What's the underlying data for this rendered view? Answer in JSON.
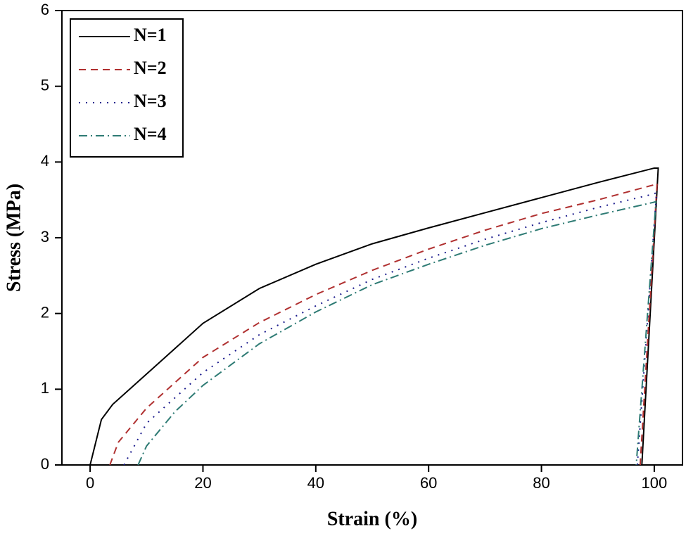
{
  "chart_data": {
    "type": "line",
    "xlabel": "Strain (%)",
    "ylabel": "Stress (MPa)",
    "xlim": [
      -5,
      105
    ],
    "xticks": [
      0,
      20,
      40,
      60,
      80,
      100
    ],
    "ylim": [
      0,
      6
    ],
    "yticks": [
      0,
      1,
      2,
      3,
      4,
      5,
      6
    ],
    "legend": "upper-left",
    "series": [
      {
        "name": "N=1",
        "color": "#000000",
        "dash": "solid",
        "x": [
          0,
          2,
          4,
          10,
          20,
          30,
          40,
          50,
          60,
          70,
          80,
          90,
          100,
          100.7,
          97.8
        ],
        "values": [
          0,
          0.6,
          0.8,
          1.2,
          1.87,
          2.33,
          2.65,
          2.92,
          3.13,
          3.33,
          3.53,
          3.73,
          3.92,
          3.92,
          0
        ]
      },
      {
        "name": "N=2",
        "color": "#b03030",
        "dash": "dash",
        "x": [
          3.5,
          5,
          10,
          20,
          30,
          40,
          50,
          60,
          70,
          80,
          90,
          100,
          100.5,
          97.5
        ],
        "values": [
          0,
          0.3,
          0.75,
          1.42,
          1.88,
          2.25,
          2.57,
          2.85,
          3.1,
          3.32,
          3.5,
          3.7,
          3.72,
          0
        ]
      },
      {
        "name": "N=3",
        "color": "#1a1a8c",
        "dash": "dot",
        "x": [
          6,
          10,
          20,
          30,
          40,
          50,
          60,
          70,
          80,
          90,
          100,
          100.4,
          97
        ],
        "values": [
          0,
          0.55,
          1.22,
          1.72,
          2.1,
          2.45,
          2.73,
          2.98,
          3.2,
          3.4,
          3.58,
          3.6,
          0
        ]
      },
      {
        "name": "N=4",
        "color": "#2e7b74",
        "dash": "dashdot",
        "x": [
          8.5,
          10,
          15,
          20,
          30,
          40,
          50,
          60,
          70,
          80,
          90,
          100,
          100.3,
          96.8
        ],
        "values": [
          0,
          0.25,
          0.7,
          1.05,
          1.6,
          2.02,
          2.38,
          2.65,
          2.9,
          3.12,
          3.3,
          3.47,
          3.48,
          0
        ]
      }
    ]
  }
}
